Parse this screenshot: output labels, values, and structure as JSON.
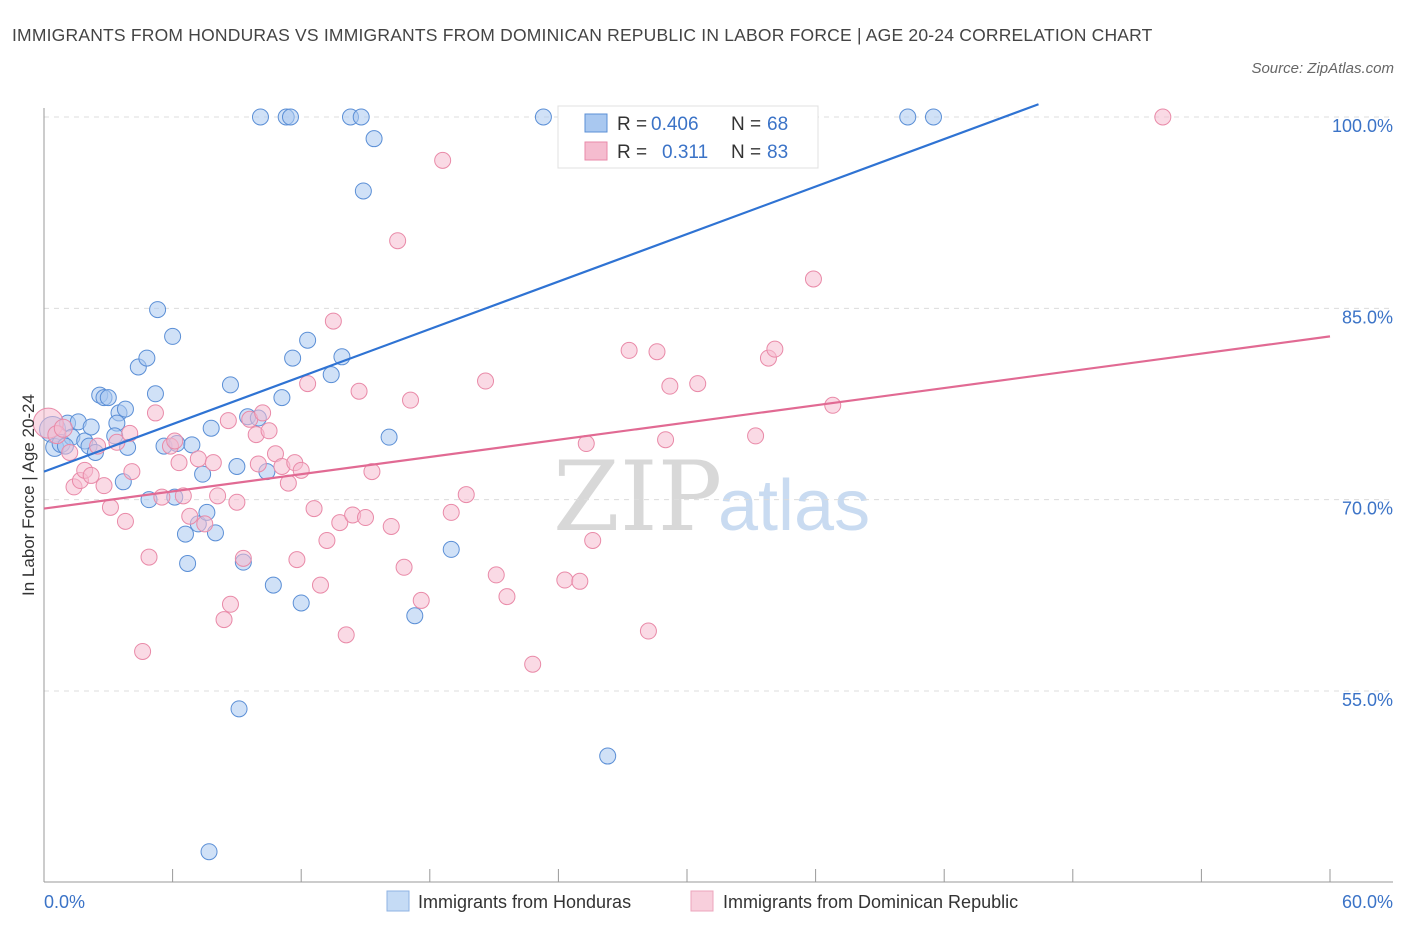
{
  "title": "IMMIGRANTS FROM HONDURAS VS IMMIGRANTS FROM DOMINICAN REPUBLIC IN LABOR FORCE | AGE 20-24 CORRELATION CHART",
  "source": "Source: ZipAtlas.com",
  "watermark": {
    "zip": "ZIP",
    "atlas": "atlas"
  },
  "colors": {
    "blue_fill": "#a9c8f0",
    "blue_stroke": "#5b8fd6",
    "blue_line": "#2f73d3",
    "pink_fill": "#f5bccf",
    "pink_stroke": "#e98aa8",
    "pink_line": "#e16a93",
    "tick_text": "#3b73c7",
    "grid": "#dcdcdc"
  },
  "legend": {
    "rows": [
      {
        "r_label": "R =",
        "r_value": "0.406",
        "n_label": "N =",
        "n_value": "68"
      },
      {
        "r_label": "R =",
        "r_value": "0.311",
        "n_label": "N =",
        "n_value": "83"
      }
    ]
  },
  "bottom_legend": [
    "Immigrants from Honduras",
    "Immigrants from Dominican Republic"
  ],
  "chart_data": {
    "type": "scatter",
    "xlabel": "",
    "ylabel": "In Labor Force | Age 20-24",
    "xlim": [
      0,
      60
    ],
    "ylim": [
      42,
      101
    ],
    "x_tick_labels": [
      "0.0%",
      "60.0%"
    ],
    "y_ticks": [
      55,
      70,
      85,
      100
    ],
    "y_tick_labels": [
      "55.0%",
      "70.0%",
      "85.0%",
      "100.0%"
    ],
    "grid": "horizontal dashed",
    "legend_position": "top-center",
    "series": [
      {
        "name": "Immigrants from Honduras",
        "color": "#a9c8f0",
        "trend": {
          "x": [
            0,
            46.4
          ],
          "y": [
            72.2,
            101
          ]
        },
        "points": [
          [
            0.4,
            75.5,
            12
          ],
          [
            0.5,
            74.1,
            8
          ],
          [
            0.8,
            74.4,
            8
          ],
          [
            1.1,
            76.0,
            7
          ],
          [
            1.3,
            74.9,
            7
          ],
          [
            1.6,
            76.1,
            7
          ],
          [
            1.9,
            74.6,
            7
          ],
          [
            2.1,
            74.2,
            7
          ],
          [
            2.2,
            75.7,
            7
          ],
          [
            2.4,
            73.7,
            7
          ],
          [
            2.6,
            78.2,
            7
          ],
          [
            2.8,
            78.0,
            7
          ],
          [
            3.0,
            78.0,
            7
          ],
          [
            3.5,
            76.8,
            7
          ],
          [
            3.4,
            76.0,
            7
          ],
          [
            3.8,
            77.1,
            7
          ],
          [
            3.9,
            74.1,
            7
          ],
          [
            3.7,
            71.4,
            7
          ],
          [
            4.4,
            80.4,
            7
          ],
          [
            4.8,
            81.1,
            7
          ],
          [
            5.3,
            84.9,
            7
          ],
          [
            5.6,
            74.2,
            7
          ],
          [
            6.0,
            82.8,
            7
          ],
          [
            6.2,
            74.4,
            7
          ],
          [
            6.1,
            70.2,
            7
          ],
          [
            4.9,
            70.0,
            7
          ],
          [
            6.9,
            74.3,
            7
          ],
          [
            7.4,
            72.0,
            7
          ],
          [
            7.2,
            68.1,
            7
          ],
          [
            6.6,
            67.3,
            7
          ],
          [
            6.7,
            65.0,
            7
          ],
          [
            7.6,
            69.0,
            7
          ],
          [
            7.8,
            75.6,
            7
          ],
          [
            8.0,
            67.4,
            7
          ],
          [
            8.7,
            79.0,
            7
          ],
          [
            9.0,
            72.6,
            7
          ],
          [
            9.3,
            65.1,
            7
          ],
          [
            9.1,
            53.6,
            7
          ],
          [
            9.5,
            76.5,
            7
          ],
          [
            10.0,
            76.4,
            7
          ],
          [
            10.1,
            100.0,
            7
          ],
          [
            10.4,
            72.2,
            7
          ],
          [
            10.7,
            63.3,
            7
          ],
          [
            11.3,
            100.0,
            7
          ],
          [
            11.5,
            100.0,
            7
          ],
          [
            11.1,
            78.0,
            7
          ],
          [
            11.6,
            81.1,
            7
          ],
          [
            12.0,
            61.9,
            7
          ],
          [
            12.3,
            82.5,
            7
          ],
          [
            13.4,
            79.8,
            7
          ],
          [
            13.9,
            81.2,
            7
          ],
          [
            14.3,
            100.0,
            7
          ],
          [
            14.8,
            100.0,
            7
          ],
          [
            14.9,
            94.2,
            7
          ],
          [
            15.4,
            98.3,
            7
          ],
          [
            16.1,
            74.9,
            7
          ],
          [
            17.3,
            60.9,
            7
          ],
          [
            19.0,
            66.1,
            7
          ],
          [
            23.3,
            100.0,
            7
          ],
          [
            25.4,
            100.0,
            7
          ],
          [
            26.3,
            49.9,
            7
          ],
          [
            28.4,
            100.0,
            7
          ],
          [
            40.3,
            100.0,
            7
          ],
          [
            41.5,
            100.0,
            7
          ],
          [
            7.7,
            42.4,
            7
          ],
          [
            3.3,
            75.0,
            7
          ],
          [
            5.2,
            78.3,
            7
          ],
          [
            1.0,
            74.2,
            7
          ]
        ]
      },
      {
        "name": "Immigrants from Dominican Republic",
        "color": "#f5bccf",
        "trend": {
          "x": [
            0,
            60
          ],
          "y": [
            69.3,
            82.8
          ]
        },
        "points": [
          [
            0.2,
            76.0,
            14
          ],
          [
            0.6,
            75.1,
            8
          ],
          [
            0.9,
            75.6,
            8
          ],
          [
            1.2,
            73.7,
            7
          ],
          [
            1.4,
            71.0,
            7
          ],
          [
            1.7,
            71.5,
            7
          ],
          [
            1.9,
            72.3,
            7
          ],
          [
            2.2,
            71.9,
            7
          ],
          [
            2.5,
            74.2,
            7
          ],
          [
            2.8,
            71.1,
            7
          ],
          [
            3.1,
            69.4,
            7
          ],
          [
            3.4,
            74.5,
            7
          ],
          [
            3.8,
            68.3,
            7
          ],
          [
            4.1,
            72.2,
            7
          ],
          [
            4.6,
            58.1,
            7
          ],
          [
            4.9,
            65.5,
            7
          ],
          [
            5.2,
            76.8,
            7
          ],
          [
            5.5,
            70.2,
            7
          ],
          [
            5.9,
            74.2,
            7
          ],
          [
            6.3,
            72.9,
            7
          ],
          [
            6.5,
            70.3,
            7
          ],
          [
            6.8,
            68.7,
            7
          ],
          [
            7.2,
            73.2,
            7
          ],
          [
            7.5,
            68.1,
            7
          ],
          [
            7.9,
            72.9,
            7
          ],
          [
            8.1,
            70.3,
            7
          ],
          [
            8.4,
            60.6,
            7
          ],
          [
            8.7,
            61.8,
            7
          ],
          [
            9.0,
            69.8,
            7
          ],
          [
            9.3,
            65.4,
            7
          ],
          [
            9.6,
            76.3,
            7
          ],
          [
            9.9,
            75.1,
            7
          ],
          [
            10.2,
            76.8,
            7
          ],
          [
            10.5,
            75.4,
            7
          ],
          [
            10.8,
            73.6,
            7
          ],
          [
            11.1,
            72.6,
            7
          ],
          [
            11.4,
            71.3,
            7
          ],
          [
            11.7,
            72.9,
            7
          ],
          [
            12.0,
            72.3,
            7
          ],
          [
            12.3,
            79.1,
            7
          ],
          [
            12.6,
            69.3,
            7
          ],
          [
            12.9,
            63.3,
            7
          ],
          [
            13.2,
            66.8,
            7
          ],
          [
            13.5,
            84.0,
            7
          ],
          [
            13.8,
            68.2,
            7
          ],
          [
            14.1,
            59.4,
            7
          ],
          [
            14.4,
            68.8,
            7
          ],
          [
            14.7,
            78.5,
            7
          ],
          [
            15.0,
            68.6,
            7
          ],
          [
            15.3,
            72.2,
            7
          ],
          [
            11.8,
            65.3,
            7
          ],
          [
            16.2,
            67.9,
            7
          ],
          [
            16.8,
            64.7,
            7
          ],
          [
            17.1,
            77.8,
            7
          ],
          [
            17.6,
            62.1,
            7
          ],
          [
            16.5,
            90.3,
            7
          ],
          [
            18.6,
            96.6,
            7
          ],
          [
            19.0,
            69.0,
            7
          ],
          [
            19.7,
            70.4,
            7
          ],
          [
            20.6,
            79.3,
            7
          ],
          [
            21.1,
            64.1,
            7
          ],
          [
            21.6,
            62.4,
            7
          ],
          [
            22.8,
            57.1,
            7
          ],
          [
            24.3,
            63.7,
            7
          ],
          [
            25.0,
            63.6,
            7
          ],
          [
            25.3,
            74.4,
            7
          ],
          [
            25.6,
            66.8,
            7
          ],
          [
            27.3,
            81.7,
            7
          ],
          [
            28.2,
            59.7,
            7
          ],
          [
            28.6,
            81.6,
            7
          ],
          [
            29.0,
            74.7,
            7
          ],
          [
            29.2,
            78.9,
            7
          ],
          [
            30.5,
            79.1,
            7
          ],
          [
            33.2,
            75.0,
            7
          ],
          [
            33.8,
            81.1,
            7
          ],
          [
            34.1,
            81.8,
            7
          ],
          [
            35.9,
            87.3,
            7
          ],
          [
            36.8,
            77.4,
            7
          ],
          [
            52.2,
            100.0,
            7
          ],
          [
            4.0,
            75.2,
            7
          ],
          [
            6.1,
            74.6,
            7
          ],
          [
            8.6,
            76.2,
            7
          ],
          [
            10.0,
            72.8,
            7
          ]
        ]
      }
    ]
  }
}
